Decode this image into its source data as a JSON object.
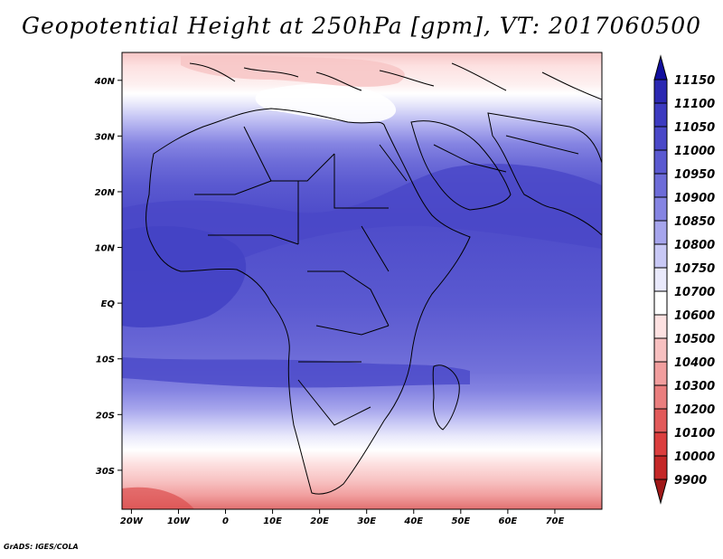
{
  "title": "Geopotential Height at 250hPa [gpm], VT: 2017060500",
  "credit": "GrADS: IGES/COLA",
  "map": {
    "lon_range": [
      -22,
      80
    ],
    "lat_range": [
      -37,
      45
    ],
    "lat_ticks": [
      {
        "lat": 40,
        "label": "40N"
      },
      {
        "lat": 30,
        "label": "30N"
      },
      {
        "lat": 20,
        "label": "20N"
      },
      {
        "lat": 10,
        "label": "10N"
      },
      {
        "lat": 0,
        "label": "EQ"
      },
      {
        "lat": -10,
        "label": "10S"
      },
      {
        "lat": -20,
        "label": "20S"
      },
      {
        "lat": -30,
        "label": "30S"
      }
    ],
    "lon_ticks": [
      {
        "lon": -20,
        "label": "20W"
      },
      {
        "lon": -10,
        "label": "10W"
      },
      {
        "lon": 0,
        "label": "0"
      },
      {
        "lon": 10,
        "label": "10E"
      },
      {
        "lon": 20,
        "label": "20E"
      },
      {
        "lon": 30,
        "label": "30E"
      },
      {
        "lon": 40,
        "label": "40E"
      },
      {
        "lon": 50,
        "label": "50E"
      },
      {
        "lon": 60,
        "label": "60E"
      },
      {
        "lon": 70,
        "label": "70E"
      }
    ]
  },
  "colorbar": {
    "levels": [
      "11150",
      "11100",
      "11050",
      "11000",
      "10950",
      "10900",
      "10850",
      "10800",
      "10750",
      "10700",
      "10600",
      "10500",
      "10400",
      "10300",
      "10200",
      "10100",
      "10000",
      "9900"
    ],
    "colors": [
      "#120f9e",
      "#2b28b2",
      "#3c3ac0",
      "#4a48c8",
      "#5a59d0",
      "#6d6cd8",
      "#8584e2",
      "#a6a5ec",
      "#c8c8f5",
      "#e9e9fb",
      "#ffffff",
      "#fde1e1",
      "#f7c0c0",
      "#f19e9e",
      "#ea7e7e",
      "#e25a5a",
      "#db3e3e",
      "#c42727",
      "#a01818"
    ]
  }
}
